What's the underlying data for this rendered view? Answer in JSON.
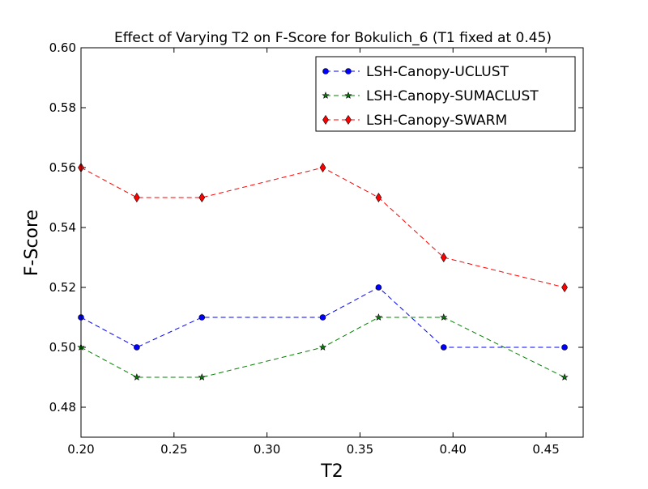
{
  "chart_data": {
    "type": "line",
    "title": "Effect of Varying T2 on F-Score for Bokulich_6 (T1 fixed at 0.45)",
    "xlabel": "T2",
    "ylabel": "F-Score",
    "xlim": [
      0.2,
      0.47
    ],
    "ylim": [
      0.47,
      0.6
    ],
    "x_ticks": [
      "0.20",
      "0.25",
      "0.30",
      "0.35",
      "0.40",
      "0.45"
    ],
    "y_ticks": [
      "0.48",
      "0.50",
      "0.52",
      "0.54",
      "0.56",
      "0.58",
      "0.60"
    ],
    "x_tick_values": [
      0.2,
      0.25,
      0.3,
      0.35,
      0.4,
      0.45
    ],
    "y_tick_values": [
      0.48,
      0.5,
      0.52,
      0.54,
      0.56,
      0.58,
      0.6
    ],
    "grid": false,
    "legend_position": "top-right",
    "x": [
      0.2,
      0.23,
      0.265,
      0.33,
      0.36,
      0.395,
      0.46
    ],
    "series": [
      {
        "name": "LSH-Canopy-UCLUST",
        "values": [
          0.51,
          0.5,
          0.51,
          0.51,
          0.52,
          0.5,
          0.5
        ],
        "color": "#0000ff",
        "marker": "circle"
      },
      {
        "name": "LSH-Canopy-SUMACLUST",
        "values": [
          0.5,
          0.49,
          0.49,
          0.5,
          0.51,
          0.51,
          0.49
        ],
        "color": "#008000",
        "marker": "star"
      },
      {
        "name": "LSH-Canopy-SWARM",
        "values": [
          0.56,
          0.55,
          0.55,
          0.56,
          0.55,
          0.53,
          0.52
        ],
        "color": "#ff0000",
        "marker": "diamond"
      }
    ]
  }
}
